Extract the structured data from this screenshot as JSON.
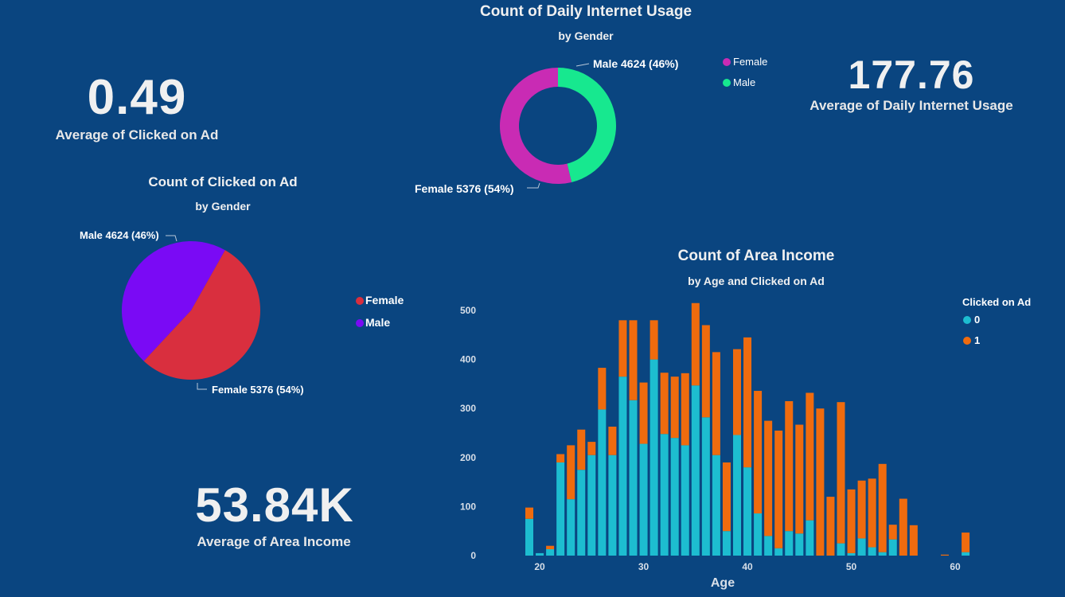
{
  "colors": {
    "background": "#0a4580",
    "donut_female": "#c92bb4",
    "donut_male": "#17e88f",
    "pie_female": "#d92f3e",
    "pie_male": "#7a0af5",
    "clicked_0": "#1dbdd0",
    "clicked_1": "#ef6b0e"
  },
  "kpis": {
    "clicked_avg": {
      "value": "0.49",
      "label": "Average of Clicked on Ad"
    },
    "usage_avg": {
      "value": "177.76",
      "label": "Average of Daily Internet Usage"
    },
    "income_avg": {
      "value": "53.84K",
      "label": "Average of Area Income"
    }
  },
  "chart_data": [
    {
      "id": "donut",
      "type": "pie",
      "donut": true,
      "title": "Count of Daily Internet Usage",
      "subtitle": "by Gender",
      "slices": [
        {
          "name": "Male",
          "value": 4624,
          "pct": 46,
          "color": "#17e88f",
          "label": "Male 4624 (46%)"
        },
        {
          "name": "Female",
          "value": 5376,
          "pct": 54,
          "color": "#c92bb4",
          "label": "Female 5376 (54%)"
        }
      ],
      "legend": [
        "Female",
        "Male"
      ],
      "legend_position": "right"
    },
    {
      "id": "pie",
      "type": "pie",
      "title": "Count of Clicked on Ad",
      "subtitle": "by Gender",
      "slices": [
        {
          "name": "Male",
          "value": 4624,
          "pct": 46,
          "color": "#7a0af5",
          "label": "Male 4624 (46%)"
        },
        {
          "name": "Female",
          "value": 5376,
          "pct": 54,
          "color": "#d92f3e",
          "label": "Female 5376 (54%)"
        }
      ],
      "legend": [
        "Female",
        "Male"
      ],
      "legend_position": "right"
    },
    {
      "id": "bar",
      "type": "bar",
      "stacked": true,
      "title": "Count of Area Income",
      "subtitle": "by Age and Clicked on Ad",
      "xlabel": "Age",
      "ylabel": "",
      "legend_title": "Clicked on Ad",
      "legend_position": "top-right",
      "ylim": [
        0,
        500
      ],
      "yticks": [
        0,
        100,
        200,
        300,
        400,
        500
      ],
      "xticks": [
        20,
        30,
        40,
        50,
        60
      ],
      "x": [
        19,
        20,
        21,
        22,
        23,
        24,
        25,
        26,
        27,
        28,
        29,
        30,
        31,
        32,
        33,
        34,
        35,
        36,
        37,
        38,
        39,
        40,
        41,
        42,
        43,
        44,
        45,
        46,
        47,
        48,
        49,
        50,
        51,
        52,
        53,
        54,
        55,
        56,
        57,
        58,
        59,
        60,
        61
      ],
      "series": [
        {
          "name": "0",
          "color": "#1dbdd0",
          "values": [
            75,
            5,
            13,
            190,
            115,
            175,
            205,
            298,
            205,
            365,
            317,
            228,
            400,
            248,
            240,
            225,
            347,
            282,
            205,
            50,
            246,
            180,
            86,
            40,
            15,
            50,
            45,
            72,
            0,
            0,
            25,
            5,
            35,
            17,
            7,
            33,
            0,
            0,
            0,
            0,
            0,
            0,
            7
          ]
        },
        {
          "name": "1",
          "color": "#ef6b0e",
          "values": [
            23,
            0,
            7,
            17,
            110,
            82,
            27,
            85,
            58,
            115,
            163,
            125,
            80,
            125,
            125,
            147,
            168,
            188,
            210,
            140,
            175,
            265,
            250,
            235,
            240,
            265,
            222,
            260,
            300,
            120,
            288,
            130,
            118,
            140,
            180,
            30,
            116,
            62,
            0,
            0,
            2,
            0,
            40
          ]
        }
      ]
    }
  ]
}
